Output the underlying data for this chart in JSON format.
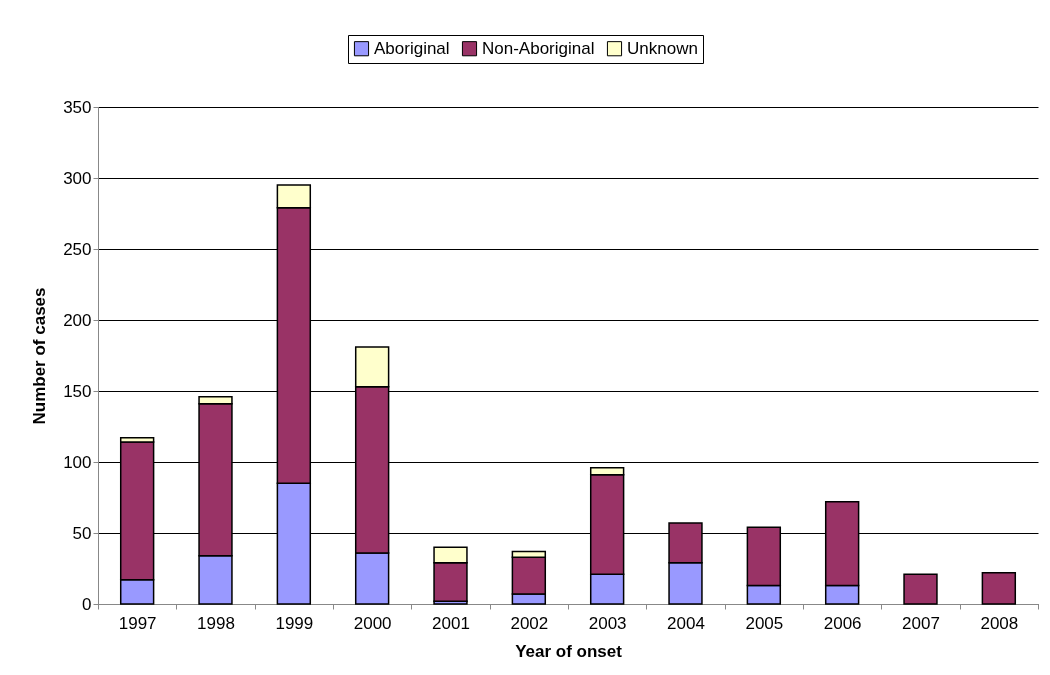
{
  "chart_data": {
    "type": "bar",
    "stacked": true,
    "xlabel": "Year of onset",
    "ylabel": "Number of cases",
    "categories": [
      "1997",
      "1998",
      "1999",
      "2000",
      "2001",
      "2002",
      "2003",
      "2004",
      "2005",
      "2006",
      "2007",
      "2008"
    ],
    "series": [
      {
        "name": "Aboriginal",
        "color": "#9999ff",
        "values": [
          17,
          34,
          85,
          36,
          2,
          7,
          21,
          29,
          13,
          13,
          0,
          0
        ]
      },
      {
        "name": "Non-Aboriginal",
        "color": "#993366",
        "values": [
          97,
          107,
          194,
          117,
          27,
          26,
          70,
          28,
          41,
          59,
          21,
          22
        ]
      },
      {
        "name": "Unknown",
        "color": "#ffffcc",
        "values": [
          3,
          5,
          16,
          28,
          11,
          4,
          5,
          0,
          0,
          0,
          0,
          0
        ]
      }
    ],
    "ylim": [
      0,
      350
    ],
    "yticks": [
      0,
      50,
      100,
      150,
      200,
      250,
      300,
      350
    ],
    "grid": "y",
    "legend": "top"
  }
}
